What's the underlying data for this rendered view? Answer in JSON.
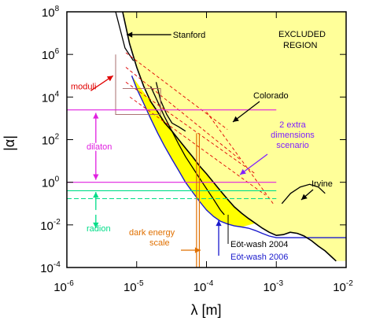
{
  "chart_data": {
    "type": "line",
    "title": "",
    "xlabel": "λ [m]",
    "ylabel": "|α|",
    "x_scale": "log",
    "y_scale": "log",
    "xlim": [
      1e-06,
      0.01
    ],
    "ylim": [
      0.0001,
      100000000
    ],
    "grid": false,
    "x_ticks": [
      {
        "base": "10",
        "exp": "-6",
        "value": 1e-06
      },
      {
        "base": "10",
        "exp": "-5",
        "value": 1e-05
      },
      {
        "base": "10",
        "exp": "-4",
        "value": 0.0001
      },
      {
        "base": "10",
        "exp": "-3",
        "value": 0.001
      },
      {
        "base": "10",
        "exp": "-2",
        "value": 0.01
      }
    ],
    "y_ticks": [
      {
        "base": "10",
        "exp": "8",
        "value": 100000000.0
      },
      {
        "base": "10",
        "exp": "6",
        "value": 1000000.0
      },
      {
        "base": "10",
        "exp": "4",
        "value": 10000.0
      },
      {
        "base": "10",
        "exp": "2",
        "value": 100.0
      },
      {
        "base": "10",
        "exp": "0",
        "value": 1
      },
      {
        "base": "10",
        "exp": "-2",
        "value": 0.01
      },
      {
        "base": "10",
        "exp": "-4",
        "value": 0.0001
      }
    ],
    "colors": {
      "excluded_fill": "#ffff99",
      "eotwash2006_fill": "#ffff00",
      "black": "#000000",
      "blue": "#1a1acc",
      "red": "#e00000",
      "brown": "#a06060",
      "magenta": "#e020e0",
      "purple": "#8020ff",
      "green": "#00dd88",
      "orange": "#e07000"
    },
    "excluded_label": [
      "EXCLUDED",
      "REGION"
    ],
    "limits": {
      "current_bound": [
        [
          6.3e-06,
          100000000.0
        ],
        [
          7.9e-06,
          3200000.0
        ],
        [
          1e-05,
          250000.0
        ],
        [
          1.26e-05,
          32000.0
        ],
        [
          1.58e-05,
          6300.0
        ],
        [
          2e-05,
          2000.0
        ],
        [
          2.5e-05,
          630
        ],
        [
          3.2e-05,
          250
        ],
        [
          4e-05,
          100
        ],
        [
          5e-05,
          40
        ],
        [
          6.3e-05,
          16
        ],
        [
          7.9e-05,
          6
        ],
        [
          0.0001,
          2.5
        ],
        [
          0.000126,
          1
        ],
        [
          0.000158,
          0.4
        ],
        [
          0.0002,
          0.16
        ],
        [
          0.00025,
          0.07
        ],
        [
          0.00032,
          0.035
        ],
        [
          0.0004,
          0.02
        ],
        [
          0.0005,
          0.012
        ],
        [
          0.00063,
          0.007
        ],
        [
          0.00079,
          0.0045
        ],
        [
          0.001,
          0.0032
        ],
        [
          0.00126,
          0.0035
        ],
        [
          0.00158,
          0.0045
        ],
        [
          0.002,
          0.004
        ],
        [
          0.0025,
          0.003
        ],
        [
          0.0032,
          0.0018
        ],
        [
          0.004,
          0.001
        ],
        [
          0.005,
          0.0006
        ],
        [
          0.0063,
          0.0003
        ],
        [
          0.0072,
          0.0002
        ]
      ],
      "eot_wash_2006": [
        [
          8.5e-06,
          100000.0
        ],
        [
          1e-05,
          25000.0
        ],
        [
          1.26e-05,
          5000.0
        ],
        [
          1.58e-05,
          1000.0
        ],
        [
          2e-05,
          200
        ],
        [
          2.5e-05,
          50
        ],
        [
          3.2e-05,
          12
        ],
        [
          4e-05,
          3.5
        ],
        [
          5e-05,
          1
        ],
        [
          6.3e-05,
          0.35
        ],
        [
          7.9e-05,
          0.13
        ],
        [
          0.0001,
          0.05
        ],
        [
          0.000126,
          0.025
        ],
        [
          0.000158,
          0.015
        ],
        [
          0.0002,
          0.011
        ],
        [
          0.00025,
          0.009
        ],
        [
          0.00032,
          0.008
        ],
        [
          0.0004,
          0.007
        ],
        [
          0.0005,
          0.0055
        ],
        [
          0.00063,
          0.004
        ],
        [
          0.00079,
          0.003
        ],
        [
          0.001,
          0.0025
        ],
        [
          0.002,
          0.0025
        ],
        [
          0.004,
          0.0025
        ],
        [
          0.01,
          0.0025
        ]
      ],
      "eot_wash_2004": [
        [
          1.58e-05,
          32000.0
        ],
        [
          2e-05,
          6000.0
        ],
        [
          2.5e-05,
          1200.0
        ],
        [
          3.2e-05,
          250
        ],
        [
          4e-05,
          60
        ],
        [
          5e-05,
          16
        ],
        [
          6.3e-05,
          5
        ],
        [
          7.9e-05,
          1.6
        ],
        [
          0.0001,
          0.5
        ],
        [
          0.000126,
          0.16
        ],
        [
          0.000158,
          0.05
        ],
        [
          0.00018,
          0.03
        ]
      ],
      "stanford_segment": [
        [
          5e-06,
          100000000.0
        ],
        [
          6.8e-06,
          2000000.0
        ],
        [
          9e-06,
          500000.0
        ]
      ],
      "colorado": [
        [
          1.9e-05,
          50000.0
        ],
        [
          2.2e-05,
          7000.0
        ],
        [
          2.7e-05,
          1500.0
        ],
        [
          3.2e-05,
          600
        ],
        [
          4e-05,
          400
        ],
        [
          5e-05,
          250
        ]
      ],
      "irvine": [
        [
          0.0012,
          0.1
        ],
        [
          0.0016,
          0.3
        ],
        [
          0.0022,
          0.6
        ],
        [
          0.003,
          0.8
        ],
        [
          0.004,
          0.6
        ],
        [
          0.005,
          0.3
        ]
      ]
    },
    "regions": [
      {
        "name": "moduli",
        "color": "#e00000"
      },
      {
        "name": "dilaton",
        "color": "#e020e0",
        "y_top": 2500,
        "y_bottom": 1
      },
      {
        "name": "radion",
        "color": "#00dd88",
        "y_top": 0.4,
        "y_bottom": 0.005
      },
      {
        "name": "dark energy scale",
        "color": "#e07000",
        "x": 7.9e-05
      },
      {
        "name": "2 extra dimensions scenario",
        "color": "#8020ff"
      }
    ],
    "annotations": {
      "stanford": "Stanford",
      "excluded_line1": "EXCLUDED",
      "excluded_line2": "REGION",
      "moduli": "moduli",
      "colorado": "Colorado",
      "extra_dims_1": "2 extra",
      "extra_dims_2": "dimensions",
      "extra_dims_3": "scenario",
      "dilaton": "dilaton",
      "irvine": "Irvine",
      "radion": "radion",
      "dark_energy_1": "dark energy",
      "dark_energy_2": "scale",
      "eotwash2004": "Eöt-wash 2004",
      "eotwash2006": "Eöt-wash 2006"
    }
  }
}
